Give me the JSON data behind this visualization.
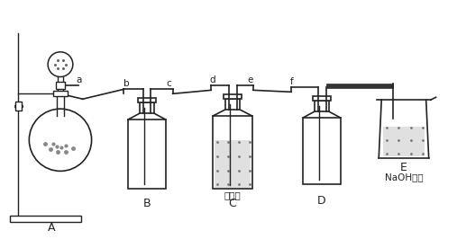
{
  "bg_color": "#ffffff",
  "line_color": "#222222",
  "label_A": "A",
  "label_B": "B",
  "label_C": "C",
  "label_D": "D",
  "label_E": "E",
  "label_a": "a",
  "label_b": "b",
  "label_c": "c",
  "label_d": "d",
  "label_e": "e",
  "label_f": "f",
  "label_conc": "浓硫酸",
  "label_naoh": "NaOH溶液",
  "font_size_main": 9,
  "font_size_small": 7.5
}
